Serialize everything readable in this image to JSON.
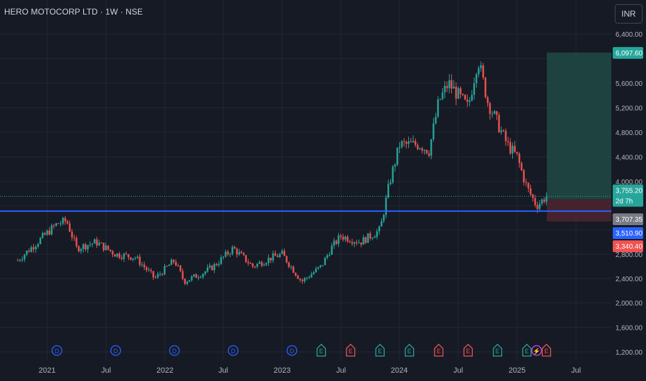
{
  "header": {
    "title": "HERO MOTOCORP LTD · 1W · NSE",
    "currency_label": "INR"
  },
  "colors": {
    "up": "#26a69a",
    "down": "#ef5350",
    "support": "#2962ff",
    "profit_zone": "#1e4a45",
    "loss_zone": "#4a2530",
    "event_dividend": "#2962ff",
    "event_earnings_up": "#26a69a",
    "event_earnings_down": "#ef5350",
    "event_split": "#e040fb"
  },
  "chart_data": {
    "type": "candlestick",
    "title": "HERO MOTOCORP LTD · 1W · NSE",
    "y_axis": {
      "min": 1200,
      "max": 6400,
      "scale": "linear",
      "ticks": [
        "6,400.00",
        "5,600.00",
        "5,200.00",
        "4,800.00",
        "4,400.00",
        "4,000.00",
        "2,800.00",
        "2,400.00",
        "2,000.00",
        "1,600.00",
        "1,200.00"
      ]
    },
    "x_axis": {
      "ticks": [
        "2021",
        "Jul",
        "2022",
        "Jul",
        "2023",
        "Jul",
        "2024",
        "Jul",
        "2025",
        "Jul"
      ]
    },
    "grid": true,
    "anchors": [
      [
        "2020-10",
        2700
      ],
      [
        "2020-12",
        3000
      ],
      [
        "2021-02",
        3300
      ],
      [
        "2021-03",
        3350
      ],
      [
        "2021-04",
        2900
      ],
      [
        "2021-06",
        3000
      ],
      [
        "2021-08",
        2800
      ],
      [
        "2021-10",
        2750
      ],
      [
        "2021-12",
        2400
      ],
      [
        "2022-02",
        2700
      ],
      [
        "2022-03",
        2350
      ],
      [
        "2022-05",
        2500
      ],
      [
        "2022-06",
        2600
      ],
      [
        "2022-08",
        2900
      ],
      [
        "2022-10",
        2600
      ],
      [
        "2022-12",
        2750
      ],
      [
        "2023-01",
        2800
      ],
      [
        "2023-03",
        2350
      ],
      [
        "2023-05",
        2600
      ],
      [
        "2023-06",
        2900
      ],
      [
        "2023-07",
        3100
      ],
      [
        "2023-09",
        3000
      ],
      [
        "2023-11",
        3200
      ],
      [
        "2023-12",
        4000
      ],
      [
        "2024-01",
        4600
      ],
      [
        "2024-03",
        4600
      ],
      [
        "2024-04",
        4500
      ],
      [
        "2024-05",
        5300
      ],
      [
        "2024-06",
        5600
      ],
      [
        "2024-07",
        5400
      ],
      [
        "2024-08",
        5200
      ],
      [
        "2024-09",
        6000
      ],
      [
        "2024-10",
        5300
      ],
      [
        "2024-12",
        4600
      ],
      [
        "2025-01",
        4400
      ],
      [
        "2025-02",
        3900
      ],
      [
        "2025-03",
        3600
      ],
      [
        "2025-04",
        3755
      ]
    ],
    "price_labels": [
      {
        "value": 6097.6,
        "text": "6,097.60",
        "role": "target"
      },
      {
        "value": 3755.2,
        "text": "3,755.20",
        "sub": "2d 7h",
        "role": "last"
      },
      {
        "value": 3707.35,
        "text": "3,707.35",
        "role": "entry"
      },
      {
        "value": 3510.9,
        "text": "3,510.90",
        "role": "support"
      },
      {
        "value": 3340.4,
        "text": "3,340.40",
        "role": "stop"
      }
    ],
    "support_level": 3510.9,
    "position": {
      "entry": 3707.35,
      "target": 6097.6,
      "stop": 3340.4
    },
    "events": [
      {
        "type": "D",
        "date": "2021-02"
      },
      {
        "type": "D",
        "date": "2021-08"
      },
      {
        "type": "D",
        "date": "2022-02"
      },
      {
        "type": "D",
        "date": "2022-08"
      },
      {
        "type": "D",
        "date": "2023-02"
      },
      {
        "type": "E",
        "date": "2023-05",
        "dir": "up"
      },
      {
        "type": "E",
        "date": "2023-08",
        "dir": "down"
      },
      {
        "type": "E",
        "date": "2023-11",
        "dir": "up"
      },
      {
        "type": "E",
        "date": "2024-02",
        "dir": "up"
      },
      {
        "type": "E",
        "date": "2024-05",
        "dir": "down"
      },
      {
        "type": "E",
        "date": "2024-08",
        "dir": "down"
      },
      {
        "type": "E",
        "date": "2024-11",
        "dir": "up"
      },
      {
        "type": "E",
        "date": "2025-02",
        "dir": "up"
      },
      {
        "type": "S",
        "date": "2025-03"
      },
      {
        "type": "E",
        "date": "2025-04",
        "dir": "down"
      }
    ]
  }
}
